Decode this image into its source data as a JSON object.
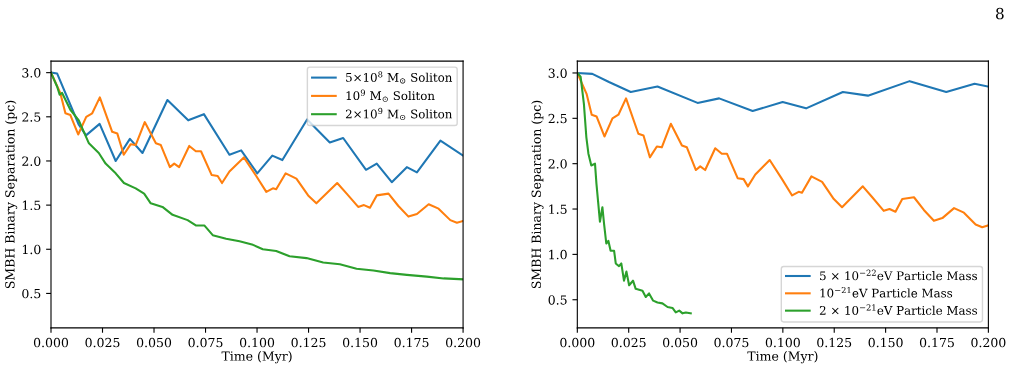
{
  "chart_data": [
    {
      "type": "line",
      "xlabel": "Time (Myr)",
      "ylabel": "SMBH Binary Separation (pc)",
      "xlim": [
        0.0,
        0.2
      ],
      "ylim": [
        0.11,
        3.13
      ],
      "xticks": [
        {
          "value": 0.0,
          "label": "0.000"
        },
        {
          "value": 0.025,
          "label": "0.025"
        },
        {
          "value": 0.05,
          "label": "0.050"
        },
        {
          "value": 0.075,
          "label": "0.075"
        },
        {
          "value": 0.1,
          "label": "0.100"
        },
        {
          "value": 0.125,
          "label": "0.125"
        },
        {
          "value": 0.15,
          "label": "0.150"
        },
        {
          "value": 0.175,
          "label": "0.175"
        },
        {
          "value": 0.2,
          "label": "0.200"
        }
      ],
      "yticks": [
        {
          "value": 0.5,
          "label": "0.5"
        },
        {
          "value": 1.0,
          "label": "1.0"
        },
        {
          "value": 1.5,
          "label": "1.5"
        },
        {
          "value": 2.0,
          "label": "2.0"
        },
        {
          "value": 2.5,
          "label": "2.5"
        },
        {
          "value": 3.0,
          "label": "3.0"
        }
      ],
      "grid": false,
      "legend": "top right",
      "marker": "none",
      "line_style": "solid",
      "series": [
        {
          "name": "5×10$^{8}$ M$_{⊙}$ Soliton",
          "color": "#1f77b4",
          "x": [
            0,
            0.003,
            0.0135,
            0.017,
            0.0236,
            0.0314,
            0.0383,
            0.0444,
            0.0565,
            0.0666,
            0.0742,
            0.0866,
            0.0923,
            0.1001,
            0.1074,
            0.1123,
            0.1243,
            0.1353,
            0.1418,
            0.1529,
            0.1581,
            0.1654,
            0.1727,
            0.1776,
            0.189,
            0.2
          ],
          "values": [
            3.0,
            2.99,
            2.41,
            2.29,
            2.42,
            2.0,
            2.25,
            2.09,
            2.69,
            2.46,
            2.53,
            2.07,
            2.12,
            1.86,
            2.06,
            2.01,
            2.47,
            2.21,
            2.26,
            1.9,
            1.97,
            1.76,
            1.93,
            1.87,
            2.23,
            2.06
          ]
        },
        {
          "name": "10$^{9}$ M$_{⊙}$ Soliton",
          "color": "#ff7f0e",
          "x": [
            0,
            0.0045,
            0.007,
            0.0094,
            0.0132,
            0.0171,
            0.02,
            0.0237,
            0.0297,
            0.0322,
            0.0353,
            0.0387,
            0.0411,
            0.0455,
            0.0509,
            0.0533,
            0.0577,
            0.0598,
            0.0622,
            0.0671,
            0.0703,
            0.0728,
            0.078,
            0.0809,
            0.083,
            0.0866,
            0.0936,
            0.0996,
            0.1045,
            0.1077,
            0.1093,
            0.1139,
            0.1191,
            0.1248,
            0.1288,
            0.1389,
            0.1435,
            0.1491,
            0.1519,
            0.1548,
            0.1581,
            0.1638,
            0.1686,
            0.1735,
            0.1776,
            0.1833,
            0.1881,
            0.1938,
            0.197,
            0.2
          ],
          "values": [
            3.0,
            2.77,
            2.54,
            2.52,
            2.3,
            2.5,
            2.54,
            2.72,
            2.33,
            2.31,
            2.07,
            2.19,
            2.18,
            2.44,
            2.2,
            2.18,
            1.93,
            1.97,
            1.93,
            2.17,
            2.11,
            2.11,
            1.84,
            1.83,
            1.75,
            1.88,
            2.04,
            1.83,
            1.65,
            1.69,
            1.68,
            1.86,
            1.8,
            1.61,
            1.52,
            1.75,
            1.63,
            1.48,
            1.5,
            1.47,
            1.61,
            1.63,
            1.49,
            1.37,
            1.4,
            1.51,
            1.46,
            1.33,
            1.3,
            1.32
          ]
        },
        {
          "name": "2×10$^{9}$ M$_{⊙}$ Soliton",
          "color": "#2ca02c",
          "x": [
            0,
            0.003,
            0.0042,
            0.0054,
            0.0094,
            0.0135,
            0.0184,
            0.0232,
            0.0265,
            0.0314,
            0.0354,
            0.0411,
            0.0452,
            0.0484,
            0.0541,
            0.059,
            0.0663,
            0.0703,
            0.0744,
            0.0785,
            0.085,
            0.0915,
            0.098,
            0.1028,
            0.1093,
            0.1158,
            0.124,
            0.1321,
            0.1402,
            0.1483,
            0.1565,
            0.1646,
            0.1727,
            0.1824,
            0.1906,
            0.2
          ],
          "values": [
            3.0,
            2.84,
            2.75,
            2.77,
            2.58,
            2.46,
            2.2,
            2.09,
            1.97,
            1.86,
            1.75,
            1.69,
            1.63,
            1.52,
            1.48,
            1.39,
            1.33,
            1.27,
            1.27,
            1.16,
            1.12,
            1.09,
            1.05,
            1.0,
            0.98,
            0.92,
            0.9,
            0.85,
            0.83,
            0.78,
            0.76,
            0.73,
            0.71,
            0.69,
            0.67,
            0.66
          ]
        }
      ]
    },
    {
      "type": "line",
      "xlabel": "Time (Myr)",
      "ylabel": "SMBH Binary Separation (pc)",
      "xlim": [
        0.0,
        0.2
      ],
      "ylim": [
        0.19,
        3.13
      ],
      "xticks": [
        {
          "value": 0.0,
          "label": "0.000"
        },
        {
          "value": 0.025,
          "label": "0.025"
        },
        {
          "value": 0.05,
          "label": "0.050"
        },
        {
          "value": 0.075,
          "label": "0.075"
        },
        {
          "value": 0.1,
          "label": "0.100"
        },
        {
          "value": 0.125,
          "label": "0.125"
        },
        {
          "value": 0.15,
          "label": "0.150"
        },
        {
          "value": 0.175,
          "label": "0.175"
        },
        {
          "value": 0.2,
          "label": "0.200"
        }
      ],
      "yticks": [
        {
          "value": 0.5,
          "label": "0.5"
        },
        {
          "value": 1.0,
          "label": "1.0"
        },
        {
          "value": 1.5,
          "label": "1.5"
        },
        {
          "value": 2.0,
          "label": "2.0"
        },
        {
          "value": 2.5,
          "label": "2.5"
        },
        {
          "value": 3.0,
          "label": "3.0"
        }
      ],
      "grid": false,
      "legend": "bottom right",
      "marker": "none",
      "line_style": "solid",
      "annotations": [
        "8"
      ],
      "series": [
        {
          "name": "5 × 10$^{−22}$eV Particle Mass",
          "color": "#1f77b4",
          "x": [
            0,
            0.0073,
            0.0154,
            0.026,
            0.039,
            0.0585,
            0.069,
            0.0853,
            0.0999,
            0.1113,
            0.1292,
            0.1414,
            0.1617,
            0.1795,
            0.1933,
            0.2
          ],
          "values": [
            3.0,
            2.99,
            2.9,
            2.79,
            2.85,
            2.67,
            2.72,
            2.58,
            2.68,
            2.61,
            2.79,
            2.75,
            2.91,
            2.79,
            2.88,
            2.85
          ]
        },
        {
          "name": "10$^{−21}$eV Particle Mass",
          "color": "#ff7f0e",
          "x": [
            0,
            0.0045,
            0.007,
            0.0094,
            0.0132,
            0.0171,
            0.02,
            0.0237,
            0.0297,
            0.0322,
            0.0353,
            0.0387,
            0.0411,
            0.0455,
            0.0509,
            0.0533,
            0.0577,
            0.0598,
            0.0622,
            0.0671,
            0.0703,
            0.0728,
            0.078,
            0.0809,
            0.083,
            0.0866,
            0.0936,
            0.0996,
            0.1045,
            0.1077,
            0.1093,
            0.1139,
            0.1191,
            0.1248,
            0.1288,
            0.1389,
            0.1435,
            0.1491,
            0.1519,
            0.1548,
            0.1581,
            0.1638,
            0.1686,
            0.1735,
            0.1776,
            0.1833,
            0.1881,
            0.1938,
            0.197,
            0.2
          ],
          "values": [
            3.0,
            2.77,
            2.54,
            2.52,
            2.3,
            2.5,
            2.54,
            2.72,
            2.33,
            2.31,
            2.07,
            2.19,
            2.18,
            2.44,
            2.2,
            2.18,
            1.93,
            1.97,
            1.93,
            2.17,
            2.11,
            2.11,
            1.84,
            1.83,
            1.75,
            1.88,
            2.04,
            1.83,
            1.65,
            1.69,
            1.68,
            1.86,
            1.8,
            1.61,
            1.52,
            1.75,
            1.63,
            1.48,
            1.5,
            1.47,
            1.61,
            1.63,
            1.49,
            1.37,
            1.4,
            1.51,
            1.46,
            1.33,
            1.3,
            1.32
          ]
        },
        {
          "name": "2 × 10$^{−21}$eV Particle Mass",
          "color": "#2ca02c",
          "x": [
            0,
            0.0016,
            0.0032,
            0.0044,
            0.0054,
            0.0068,
            0.0086,
            0.0093,
            0.0102,
            0.011,
            0.0122,
            0.013,
            0.0141,
            0.0151,
            0.0162,
            0.0179,
            0.0187,
            0.0203,
            0.0214,
            0.0227,
            0.0239,
            0.0252,
            0.0271,
            0.0284,
            0.0317,
            0.0333,
            0.0349,
            0.0369,
            0.039,
            0.0414,
            0.0439,
            0.0463,
            0.0479,
            0.0496,
            0.0512,
            0.0528,
            0.0552
          ],
          "values": [
            3.0,
            2.96,
            2.66,
            2.29,
            2.11,
            1.98,
            2.0,
            1.78,
            1.56,
            1.36,
            1.52,
            1.34,
            1.12,
            1.15,
            1.04,
            1.04,
            0.9,
            0.87,
            0.9,
            0.71,
            0.81,
            0.66,
            0.71,
            0.62,
            0.6,
            0.53,
            0.57,
            0.49,
            0.47,
            0.46,
            0.42,
            0.41,
            0.36,
            0.38,
            0.35,
            0.36,
            0.35
          ]
        }
      ]
    }
  ]
}
